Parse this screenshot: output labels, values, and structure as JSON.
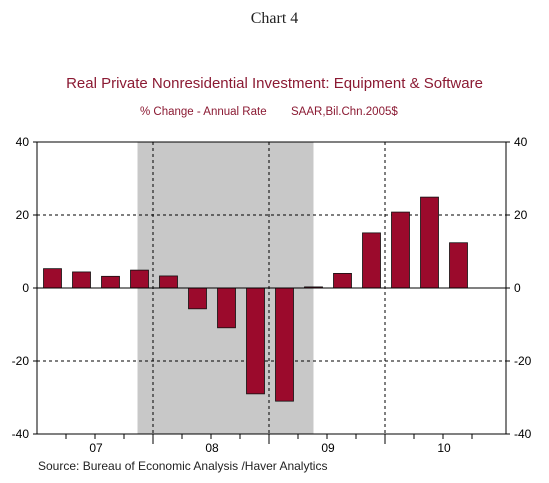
{
  "heading": "Chart 4",
  "source": "Source:  Bureau of Economic Analysis /Haver Analytics",
  "colors": {
    "bar": "#9b0a2c",
    "title": "#8b1a33",
    "recession": "#c8c8c8"
  },
  "chart_data": {
    "type": "bar",
    "title": "Real Private Nonresidential Investment: Equipment & Software",
    "subtitle_left": "% Change - Annual Rate",
    "subtitle_right": "SAAR,Bil.Chn.2005$",
    "xlabel": "",
    "ylabel": "",
    "ylim": [
      -40,
      40
    ],
    "yticks": [
      -40,
      -20,
      0,
      20,
      40
    ],
    "ytick_labels": [
      "-40",
      "-20",
      "0",
      "20",
      "40"
    ],
    "year_labels": [
      "07",
      "08",
      "09",
      "10"
    ],
    "categories": [
      "2007 Q1",
      "2007 Q2",
      "2007 Q3",
      "2007 Q4",
      "2008 Q1",
      "2008 Q2",
      "2008 Q3",
      "2008 Q4",
      "2009 Q1",
      "2009 Q2",
      "2009 Q3",
      "2009 Q4",
      "2010 Q1",
      "2010 Q2",
      "2010 Q3"
    ],
    "values": [
      5.3,
      4.4,
      3.2,
      4.9,
      3.3,
      -5.7,
      -10.9,
      -29.0,
      -31.0,
      0.3,
      4.0,
      15.1,
      20.8,
      24.9,
      12.4
    ],
    "recession": {
      "from": "2007 Q4",
      "to": "2009 Q2"
    },
    "grid": "dashed at ±20 and at each year boundary",
    "legend": "none"
  }
}
